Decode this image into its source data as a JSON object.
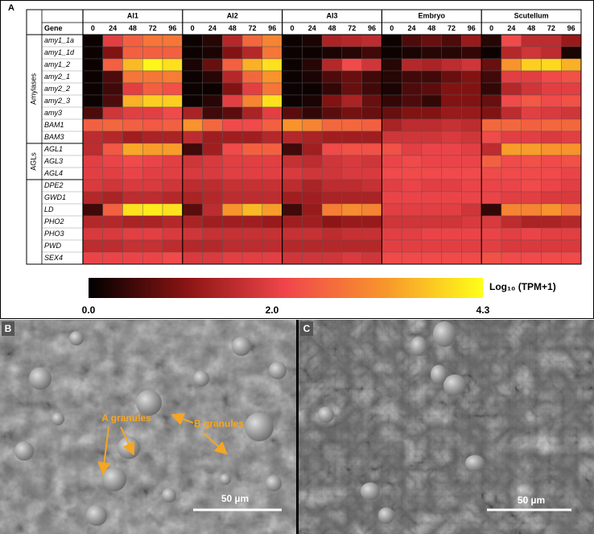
{
  "panel_a_label": "A",
  "chart_data": {
    "type": "heatmap",
    "row_header": "Gene",
    "groups": [
      "AI1",
      "AI2",
      "AI3",
      "Embryo",
      "Scutellum"
    ],
    "timepoints": [
      0,
      24,
      48,
      72,
      96
    ],
    "row_groups": [
      {
        "label": "Amylases",
        "rows": [
          "amy1_1a",
          "amy1_1d",
          "amy1_2",
          "amy2_1",
          "amy2_2",
          "amy2_3",
          "amy3",
          "BAM1",
          "BAM3"
        ]
      },
      {
        "label": "AGLs",
        "rows": [
          "AGL1",
          "AGL3",
          "AGL4"
        ]
      },
      {
        "label": null,
        "rows": [
          "DPE2",
          "GWD1",
          "LD",
          "PHO2",
          "PHO3",
          "PWD",
          "SEX4"
        ]
      }
    ],
    "values": [
      [
        0.1,
        2.0,
        2.5,
        2.8,
        2.8,
        0.1,
        0.3,
        1.5,
        2.6,
        3.0,
        0.1,
        0.2,
        1.4,
        1.5,
        1.6,
        0.1,
        0.6,
        0.8,
        0.6,
        1.2,
        0.3,
        2.2,
        1.6,
        1.6,
        1.2
      ],
      [
        0.1,
        1.0,
        2.5,
        2.5,
        2.5,
        0.1,
        0.2,
        1.0,
        1.5,
        2.8,
        0.1,
        0.1,
        0.2,
        0.3,
        0.5,
        0.1,
        0.2,
        0.3,
        0.3,
        0.4,
        0.1,
        1.5,
        1.8,
        1.6,
        0.2
      ],
      [
        0.1,
        2.5,
        3.6,
        4.2,
        4.0,
        0.2,
        0.8,
        2.5,
        3.5,
        4.0,
        0.1,
        0.3,
        1.5,
        2.2,
        1.8,
        0.3,
        1.5,
        1.4,
        1.6,
        1.8,
        0.8,
        3.2,
        3.8,
        3.9,
        3.5
      ],
      [
        0.1,
        0.6,
        2.8,
        2.8,
        2.9,
        0.1,
        0.3,
        1.5,
        2.6,
        3.2,
        0.1,
        0.2,
        0.6,
        0.8,
        0.5,
        0.3,
        0.5,
        0.5,
        0.8,
        1.0,
        0.5,
        2.0,
        2.0,
        2.2,
        2.3
      ],
      [
        0.1,
        0.5,
        2.0,
        2.5,
        2.3,
        0.1,
        0.1,
        1.0,
        2.0,
        2.8,
        0.1,
        0.1,
        0.4,
        0.8,
        0.5,
        0.2,
        0.6,
        0.7,
        1.0,
        1.0,
        0.4,
        1.5,
        1.8,
        2.0,
        2.0
      ],
      [
        0.1,
        0.6,
        3.5,
        3.8,
        3.8,
        0.1,
        0.3,
        2.0,
        3.0,
        4.0,
        0.1,
        0.2,
        1.0,
        1.4,
        0.8,
        0.4,
        0.6,
        0.4,
        1.0,
        1.0,
        0.8,
        2.2,
        2.4,
        2.2,
        2.3
      ],
      [
        0.6,
        1.8,
        2.0,
        2.0,
        2.2,
        1.4,
        0.5,
        0.7,
        1.4,
        2.0,
        0.7,
        0.4,
        0.7,
        0.9,
        0.8,
        0.8,
        1.0,
        1.0,
        1.2,
        1.2,
        1.0,
        1.6,
        2.0,
        1.9,
        1.8
      ],
      [
        2.5,
        2.6,
        2.5,
        2.4,
        2.5,
        3.2,
        2.6,
        2.2,
        2.2,
        2.5,
        3.2,
        3.0,
        2.6,
        2.6,
        2.5,
        1.4,
        1.6,
        1.6,
        1.7,
        1.6,
        2.6,
        2.6,
        2.5,
        2.6,
        2.6
      ],
      [
        1.6,
        1.5,
        1.3,
        1.4,
        1.4,
        1.6,
        1.3,
        1.3,
        1.3,
        1.5,
        1.5,
        1.4,
        1.3,
        1.3,
        1.3,
        1.8,
        1.8,
        1.8,
        1.9,
        1.8,
        2.2,
        2.0,
        2.0,
        1.9,
        2.0
      ],
      [
        1.6,
        2.4,
        3.4,
        3.3,
        3.3,
        0.5,
        1.3,
        2.2,
        2.5,
        2.5,
        0.5,
        1.3,
        2.2,
        2.3,
        2.3,
        2.3,
        2.0,
        2.1,
        2.1,
        2.0,
        1.6,
        3.3,
        3.3,
        3.2,
        3.2
      ],
      [
        2.0,
        2.1,
        2.2,
        2.1,
        2.0,
        1.8,
        1.9,
        2.0,
        2.0,
        2.0,
        1.7,
        1.6,
        1.8,
        1.9,
        1.8,
        2.1,
        2.2,
        2.1,
        2.1,
        2.1,
        2.5,
        2.2,
        2.3,
        2.2,
        2.3
      ],
      [
        2.0,
        2.0,
        2.1,
        2.0,
        2.0,
        1.9,
        1.9,
        2.0,
        2.0,
        2.0,
        1.9,
        1.8,
        1.8,
        1.9,
        1.9,
        2.2,
        2.2,
        2.2,
        2.2,
        2.2,
        2.2,
        2.2,
        2.2,
        2.2,
        2.1
      ],
      [
        1.9,
        1.8,
        1.9,
        1.9,
        1.8,
        1.6,
        1.6,
        1.7,
        1.7,
        1.7,
        1.6,
        1.4,
        1.6,
        1.6,
        1.7,
        2.0,
        2.1,
        2.0,
        2.0,
        2.1,
        2.1,
        2.1,
        2.2,
        2.1,
        2.0
      ],
      [
        1.5,
        1.4,
        1.6,
        1.6,
        1.5,
        1.4,
        1.5,
        1.6,
        1.6,
        1.6,
        1.3,
        1.3,
        1.4,
        1.4,
        1.4,
        2.1,
        2.1,
        2.1,
        2.1,
        2.1,
        2.1,
        2.0,
        2.0,
        1.9,
        1.9
      ],
      [
        0.5,
        2.5,
        4.0,
        4.1,
        4.0,
        0.7,
        1.6,
        3.2,
        3.6,
        3.3,
        0.5,
        1.2,
        2.9,
        3.1,
        3.0,
        2.0,
        2.0,
        2.0,
        2.0,
        1.8,
        0.4,
        3.0,
        3.0,
        3.2,
        2.8
      ],
      [
        1.5,
        1.5,
        1.4,
        1.4,
        1.5,
        1.4,
        1.3,
        1.3,
        1.3,
        1.2,
        1.3,
        1.3,
        1.1,
        1.2,
        1.2,
        1.8,
        1.8,
        1.8,
        1.8,
        1.9,
        1.9,
        1.6,
        1.4,
        1.4,
        1.5
      ],
      [
        1.9,
        1.9,
        2.0,
        2.0,
        1.9,
        1.8,
        1.7,
        1.7,
        1.7,
        1.7,
        1.7,
        1.7,
        1.6,
        1.7,
        1.7,
        2.0,
        2.0,
        2.1,
        2.1,
        2.1,
        2.1,
        2.0,
        2.1,
        2.0,
        2.0
      ],
      [
        1.6,
        1.6,
        1.7,
        1.7,
        1.6,
        1.5,
        1.5,
        1.6,
        1.6,
        1.6,
        1.5,
        1.5,
        1.5,
        1.5,
        1.5,
        2.0,
        2.0,
        2.0,
        2.0,
        2.0,
        2.0,
        1.9,
        1.9,
        1.9,
        1.9
      ],
      [
        2.1,
        2.1,
        2.1,
        2.1,
        2.2,
        1.9,
        1.9,
        2.0,
        2.0,
        2.0,
        1.8,
        1.8,
        1.8,
        1.9,
        1.8,
        2.2,
        2.2,
        2.2,
        2.2,
        2.2,
        2.3,
        2.2,
        2.2,
        2.2,
        2.2
      ]
    ],
    "colormap": [
      "#000000",
      "#8c1414",
      "#f0464b",
      "#f8952c",
      "#ffff19"
    ],
    "zlim": [
      0,
      4.3
    ],
    "zticks": [
      {
        "value": 0,
        "label": "0.0"
      },
      {
        "value": 2,
        "label": "2.0"
      },
      4.3
    ],
    "colorbar_label": "Log₁₀ (TPM+1)"
  },
  "panels": [
    {
      "label": "B",
      "annotations": [
        "A granules",
        "B granules"
      ],
      "scale_bar": "50 µm"
    },
    {
      "label": "C",
      "scale_bar": "50 µm"
    }
  ]
}
